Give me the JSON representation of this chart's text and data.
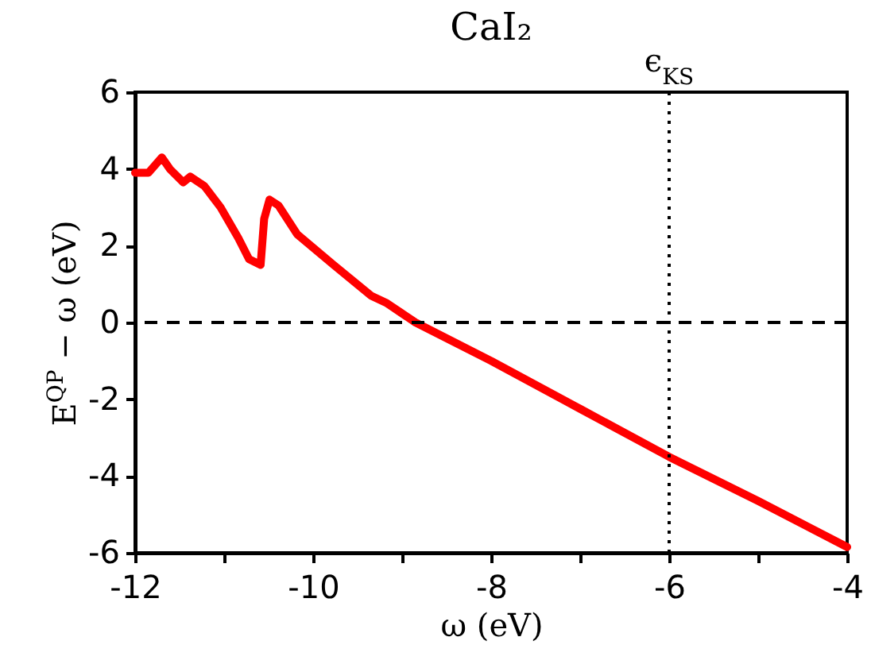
{
  "chart_data": {
    "type": "line",
    "title": "CaI₂",
    "xlabel": "ω (eV)",
    "ylabel": "E$^{QP}$ − ω (eV)",
    "xlim": [
      -12,
      -4
    ],
    "ylim": [
      -6,
      6
    ],
    "xticks": [
      -12,
      {
        "value": -11,
        "label": null
      },
      -10,
      {
        "value": -9,
        "label": null
      },
      -8,
      {
        "value": -7,
        "label": null
      },
      -6,
      {
        "value": -5,
        "label": null
      },
      -4
    ],
    "yticks": [
      -6,
      -4,
      -2,
      0,
      2,
      4,
      6
    ],
    "grid": false,
    "marker": "none",
    "line_style": "solid",
    "series": [
      {
        "color": "#ff0000",
        "x": [
          -12,
          -11.85,
          -11.7,
          -11.61,
          -11.46,
          -11.38,
          -11.22,
          -11.04,
          -10.84,
          -10.72,
          -10.59,
          -10.55,
          -10.49,
          -10.39,
          -10.18,
          -9.77,
          -9.35,
          -9.17,
          -8.85,
          -8,
          -7,
          -6,
          -5,
          -4
        ],
        "values": [
          3.9,
          3.9,
          4.3,
          4.0,
          3.65,
          3.8,
          3.55,
          3.0,
          2.2,
          1.65,
          1.5,
          2.7,
          3.2,
          3.05,
          2.3,
          1.5,
          0.7,
          0.5,
          0.0,
          -1.0,
          -2.25,
          -3.5,
          -4.65,
          -5.85
        ]
      }
    ],
    "ref_lines": [
      {
        "axis": "y",
        "value": 0,
        "line_style": "dashed",
        "color": "#000000"
      },
      {
        "axis": "x",
        "value": -6,
        "label": "ϵ$_{KS}$",
        "line_style": "dotted",
        "color": "#000000"
      }
    ]
  }
}
